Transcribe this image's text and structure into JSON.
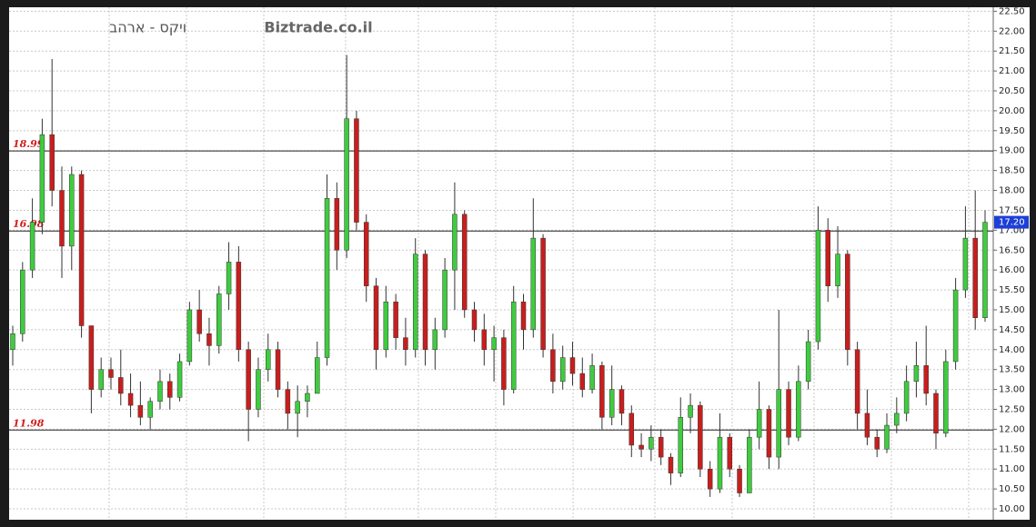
{
  "chart_data": {
    "type": "candlestick",
    "title": "ויקס  -  ארהב",
    "subtitle": "Biztrade.co.il",
    "up_color": "#3fcc3f",
    "down_color": "#c81e1e",
    "open": [
      14.0,
      14.4,
      16.0,
      17.2,
      19.4,
      18.0,
      16.6,
      18.4,
      14.6,
      13.0,
      13.5,
      13.3,
      12.9,
      12.6,
      12.3,
      12.7,
      13.2,
      12.8,
      13.7,
      15.0,
      14.4,
      14.1,
      15.4,
      16.2,
      14.0,
      12.5,
      13.5,
      14.0,
      13.0,
      12.4,
      12.7,
      12.9,
      13.8,
      17.8,
      16.5,
      19.8,
      17.2,
      15.6,
      14.0,
      15.2,
      14.3,
      14.0,
      16.4,
      14.0,
      14.5,
      16.0,
      17.4,
      15.0,
      14.5,
      14.0,
      14.3,
      13.0,
      15.2,
      14.5,
      16.8,
      14.0,
      13.2,
      13.8,
      13.4,
      13.0,
      13.6,
      12.3,
      13.0,
      12.4,
      11.6,
      11.5,
      11.8,
      11.3,
      10.9,
      12.3,
      12.6,
      11.0,
      10.5,
      11.8,
      11.0,
      10.4,
      11.8,
      12.5,
      11.3,
      13.0,
      11.8,
      13.2,
      14.2,
      17.0,
      15.6,
      16.4,
      14.0,
      12.4,
      11.8,
      11.5,
      12.1,
      12.4,
      13.2,
      13.6,
      12.9,
      11.9,
      13.7,
      15.5,
      16.8,
      14.8
    ],
    "high": [
      14.6,
      16.2,
      17.8,
      19.8,
      21.3,
      18.6,
      18.6,
      18.5,
      14.6,
      13.8,
      13.8,
      14.0,
      13.4,
      13.2,
      12.8,
      13.5,
      13.4,
      13.9,
      15.2,
      15.5,
      14.8,
      15.6,
      16.7,
      16.6,
      14.2,
      13.8,
      14.4,
      14.2,
      13.2,
      13.1,
      13.1,
      14.2,
      18.4,
      18.2,
      21.4,
      20.0,
      17.4,
      15.8,
      15.6,
      15.4,
      14.8,
      16.8,
      16.5,
      14.8,
      16.3,
      18.2,
      17.5,
      15.2,
      14.9,
      14.6,
      14.5,
      15.6,
      15.4,
      17.8,
      16.9,
      14.4,
      14.1,
      14.2,
      13.8,
      13.9,
      13.7,
      13.6,
      13.1,
      12.6,
      11.9,
      12.1,
      12.0,
      11.4,
      12.8,
      12.9,
      12.7,
      11.2,
      12.4,
      11.9,
      11.1,
      12.0,
      13.2,
      12.6,
      15.0,
      13.2,
      13.6,
      14.5,
      17.6,
      17.3,
      17.1,
      16.5,
      14.2,
      13.0,
      12.0,
      12.4,
      12.8,
      13.6,
      14.2,
      14.6,
      13.0,
      14.0,
      15.8,
      17.6,
      18.0,
      17.5
    ],
    "low": [
      13.6,
      14.2,
      15.8,
      16.9,
      17.6,
      15.8,
      16.0,
      14.3,
      12.4,
      12.8,
      13.0,
      12.6,
      12.3,
      12.1,
      12.0,
      12.5,
      12.5,
      12.7,
      13.6,
      14.2,
      13.6,
      13.9,
      15.0,
      13.7,
      11.7,
      12.3,
      13.2,
      12.8,
      12.0,
      11.8,
      12.3,
      12.9,
      13.6,
      16.0,
      16.3,
      17.0,
      15.2,
      13.5,
      13.8,
      14.0,
      13.6,
      13.8,
      13.6,
      13.5,
      14.3,
      15.0,
      14.8,
      14.2,
      13.6,
      13.2,
      12.6,
      12.9,
      14.0,
      14.3,
      13.8,
      12.9,
      13.0,
      13.1,
      12.8,
      12.9,
      12.0,
      12.1,
      12.1,
      11.3,
      11.3,
      11.2,
      11.1,
      10.6,
      10.8,
      11.9,
      10.8,
      10.3,
      10.4,
      10.8,
      10.3,
      10.4,
      11.5,
      11.0,
      11.0,
      11.6,
      11.7,
      13.0,
      14.0,
      15.2,
      15.3,
      13.6,
      12.0,
      11.6,
      11.3,
      11.4,
      11.9,
      12.2,
      12.8,
      12.6,
      11.5,
      11.8,
      13.5,
      15.3,
      14.5,
      14.7
    ],
    "close": [
      14.4,
      16.0,
      17.2,
      19.4,
      18.0,
      16.6,
      18.4,
      14.6,
      13.0,
      13.5,
      13.3,
      12.9,
      12.6,
      12.3,
      12.7,
      13.2,
      12.8,
      13.7,
      15.0,
      14.4,
      14.1,
      15.4,
      16.2,
      14.0,
      12.5,
      13.5,
      14.0,
      13.0,
      12.4,
      12.7,
      12.9,
      13.8,
      17.8,
      16.5,
      19.8,
      17.2,
      15.6,
      14.0,
      15.2,
      14.3,
      14.0,
      16.4,
      14.0,
      14.5,
      16.0,
      17.4,
      15.0,
      14.5,
      14.0,
      14.3,
      13.0,
      15.2,
      14.5,
      16.8,
      14.0,
      13.2,
      13.8,
      13.4,
      13.0,
      13.6,
      12.3,
      13.0,
      12.4,
      11.6,
      11.5,
      11.8,
      11.3,
      10.9,
      12.3,
      12.6,
      11.0,
      10.5,
      11.8,
      11.0,
      10.4,
      11.8,
      12.5,
      11.3,
      13.0,
      11.8,
      13.2,
      14.2,
      17.0,
      15.6,
      16.4,
      14.0,
      12.4,
      11.8,
      11.5,
      12.1,
      12.4,
      13.2,
      13.6,
      12.9,
      11.9,
      13.7,
      15.5,
      16.8,
      14.8,
      17.2
    ],
    "ylim": [
      9.75,
      22.6
    ],
    "yticks": [
      {
        "value": 10,
        "label": "10.00"
      },
      {
        "value": 10.5,
        "label": "10.50"
      },
      {
        "value": 11,
        "label": "11.00"
      },
      {
        "value": 11.5,
        "label": "11.50"
      },
      {
        "value": 12,
        "label": "12.00"
      },
      {
        "value": 12.5,
        "label": "12.50"
      },
      {
        "value": 13,
        "label": "13.00"
      },
      {
        "value": 13.5,
        "label": "13.50"
      },
      {
        "value": 14,
        "label": "14.00"
      },
      {
        "value": 14.5,
        "label": "14.50"
      },
      {
        "value": 15,
        "label": "15.00"
      },
      {
        "value": 15.5,
        "label": "15.50"
      },
      {
        "value": 16,
        "label": "16.00"
      },
      {
        "value": 16.5,
        "label": "16.50"
      },
      {
        "value": 17,
        "label": "17.00"
      },
      {
        "value": 17.5,
        "label": "17.50"
      },
      {
        "value": 18,
        "label": "18.00"
      },
      {
        "value": 18.5,
        "label": "18.50"
      },
      {
        "value": 19,
        "label": "19.00"
      },
      {
        "value": 19.5,
        "label": "19.50"
      },
      {
        "value": 20,
        "label": "20.00"
      },
      {
        "value": 20.5,
        "label": "20.50"
      },
      {
        "value": 21,
        "label": "21.00"
      },
      {
        "value": 21.5,
        "label": "21.50"
      },
      {
        "value": 22,
        "label": "22.00"
      },
      {
        "value": 22.5,
        "label": "22.50"
      }
    ],
    "grid": true,
    "reference_lines": [
      18.99,
      16.98,
      11.98
    ],
    "last_price": {
      "value": 17.2,
      "label": "17.20"
    }
  }
}
